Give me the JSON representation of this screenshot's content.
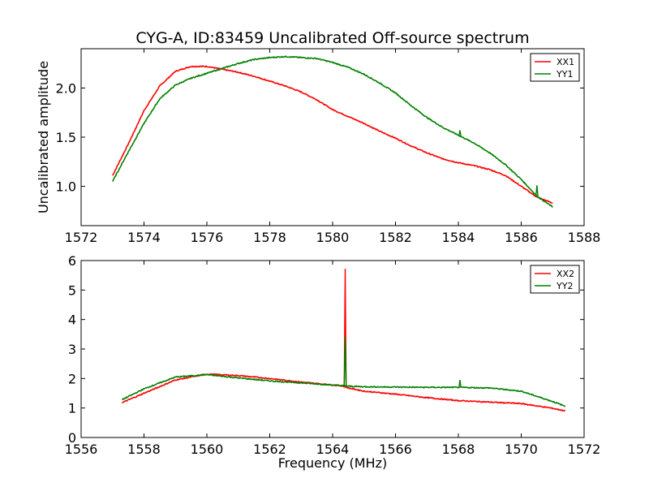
{
  "figure": {
    "title": "CYG-A, ID:83459 Uncalibrated Off-source spectrum"
  },
  "chart_data": [
    {
      "type": "line",
      "title": "CYG-A, ID:83459 Uncalibrated Off-source spectrum",
      "xlabel": "",
      "ylabel": "Uncalibrated amplitude",
      "xlim": [
        1572,
        1588
      ],
      "ylim": [
        0.6,
        2.4
      ],
      "xticks": [
        1572,
        1574,
        1576,
        1578,
        1580,
        1582,
        1584,
        1586,
        1588
      ],
      "yticks": [
        1.0,
        1.5,
        2.0
      ],
      "ytick_labels": [
        "1.0",
        "1.5",
        "2.0"
      ],
      "grid": false,
      "legend": "top-right",
      "series": [
        {
          "name": "XX1",
          "color": "#ff0000",
          "x": [
            1573,
            1573.5,
            1574,
            1574.5,
            1575,
            1575.5,
            1576,
            1576.5,
            1577,
            1577.5,
            1578,
            1578.5,
            1579,
            1579.5,
            1580,
            1580.5,
            1581,
            1581.5,
            1582,
            1582.5,
            1583,
            1583.5,
            1584,
            1584.5,
            1585,
            1585.5,
            1586,
            1586.5,
            1587
          ],
          "y": [
            1.11,
            1.43,
            1.77,
            2.02,
            2.17,
            2.22,
            2.22,
            2.19,
            2.16,
            2.12,
            2.07,
            2.02,
            1.96,
            1.88,
            1.78,
            1.71,
            1.64,
            1.56,
            1.49,
            1.41,
            1.34,
            1.28,
            1.24,
            1.21,
            1.17,
            1.11,
            1.0,
            0.89,
            0.83
          ]
        },
        {
          "name": "YY1",
          "color": "#008000",
          "x": [
            1573,
            1573.5,
            1574,
            1574.5,
            1575,
            1575.5,
            1576,
            1576.5,
            1577,
            1577.5,
            1578,
            1578.5,
            1579,
            1579.5,
            1580,
            1580.5,
            1581,
            1581.5,
            1582,
            1582.5,
            1583,
            1583.5,
            1584,
            1584.5,
            1585,
            1585.5,
            1586,
            1586.5,
            1587
          ],
          "y": [
            1.05,
            1.35,
            1.64,
            1.89,
            2.03,
            2.1,
            2.15,
            2.2,
            2.25,
            2.29,
            2.31,
            2.32,
            2.31,
            2.3,
            2.26,
            2.21,
            2.14,
            2.05,
            1.95,
            1.82,
            1.7,
            1.6,
            1.52,
            1.44,
            1.34,
            1.22,
            1.07,
            0.9,
            0.79
          ],
          "spikes": [
            [
              1584.05,
              1.57
            ],
            [
              1586.5,
              1.01
            ]
          ]
        }
      ]
    },
    {
      "type": "line",
      "title": "",
      "xlabel": "Frequency (MHz)",
      "ylabel": "",
      "xlim": [
        1556,
        1572
      ],
      "ylim": [
        0,
        6
      ],
      "xticks": [
        1556,
        1558,
        1560,
        1562,
        1564,
        1566,
        1568,
        1570,
        1572
      ],
      "yticks": [
        0,
        1,
        2,
        3,
        4,
        5,
        6
      ],
      "ytick_labels": [
        "0",
        "1",
        "2",
        "3",
        "4",
        "5",
        "6"
      ],
      "grid": false,
      "legend": "top-right",
      "series": [
        {
          "name": "XX2",
          "color": "#ff0000",
          "x": [
            1557.3,
            1558,
            1559,
            1560,
            1561,
            1562,
            1563,
            1564,
            1564.3,
            1564.5,
            1565,
            1566,
            1567,
            1568,
            1569,
            1570,
            1571,
            1571.4
          ],
          "y": [
            1.18,
            1.5,
            1.95,
            2.15,
            2.1,
            2.0,
            1.88,
            1.78,
            1.75,
            1.68,
            1.57,
            1.47,
            1.35,
            1.25,
            1.2,
            1.15,
            0.99,
            0.9
          ],
          "spikes": [
            [
              1564.4,
              5.72
            ]
          ]
        },
        {
          "name": "YY2",
          "color": "#008000",
          "x": [
            1557.3,
            1558,
            1559,
            1560,
            1561,
            1562,
            1563,
            1564,
            1564.3,
            1564.5,
            1565,
            1566,
            1567,
            1568,
            1569,
            1570,
            1571,
            1571.4
          ],
          "y": [
            1.28,
            1.65,
            2.05,
            2.13,
            2.02,
            1.92,
            1.85,
            1.78,
            1.76,
            1.74,
            1.72,
            1.71,
            1.7,
            1.7,
            1.68,
            1.57,
            1.22,
            1.06
          ],
          "spikes": [
            [
              1564.4,
              3.4
            ],
            [
              1568.05,
              1.95
            ]
          ]
        }
      ]
    }
  ]
}
